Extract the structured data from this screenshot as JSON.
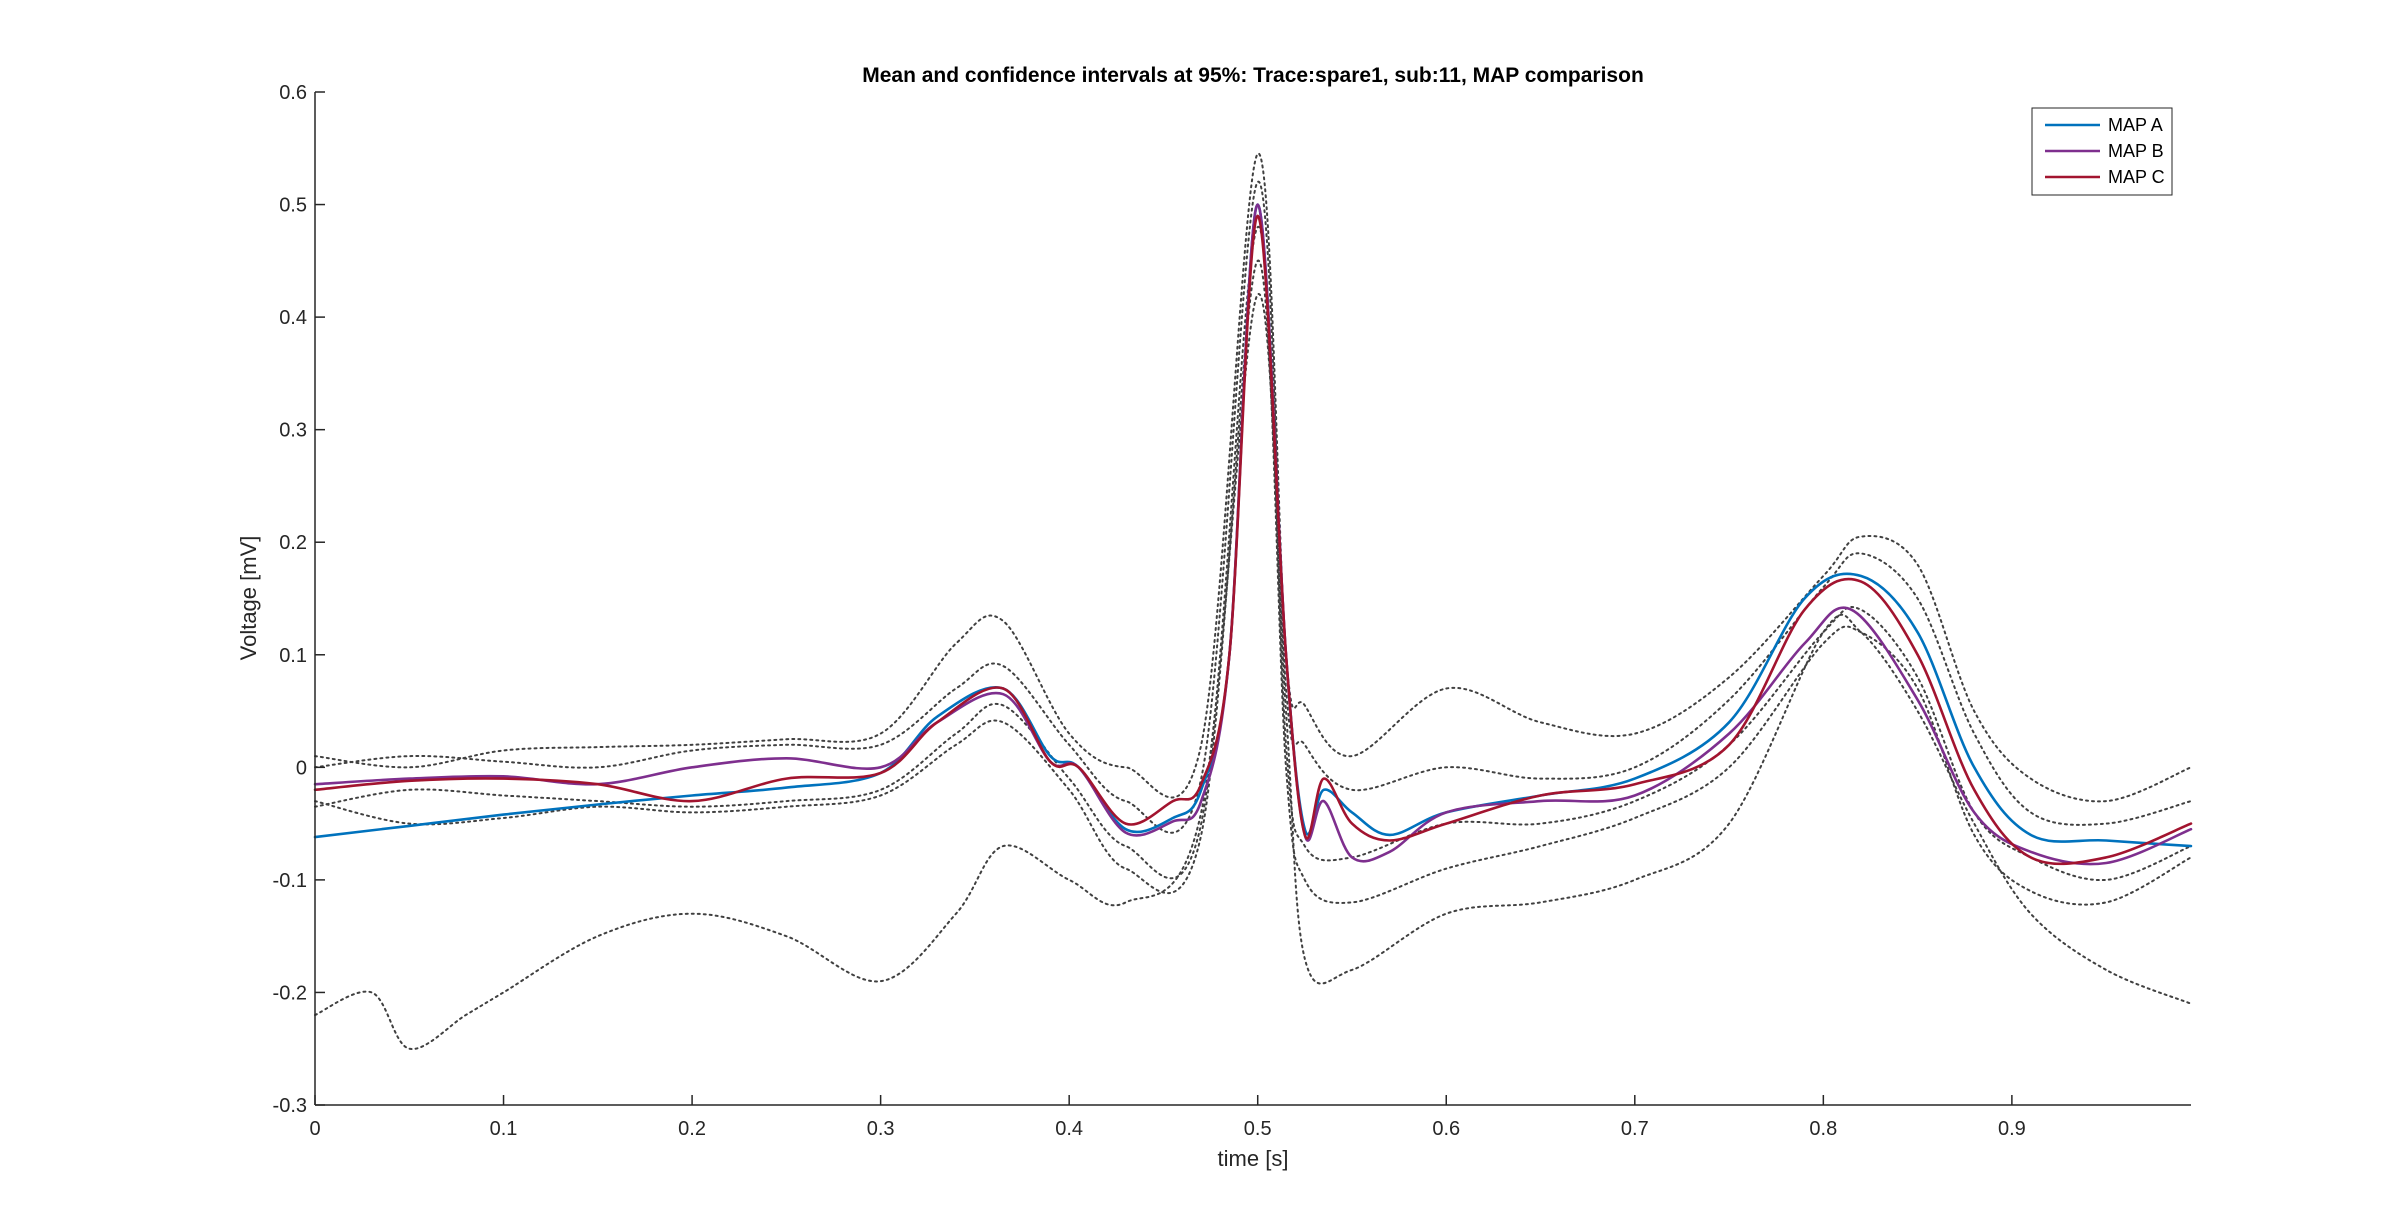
{
  "chart_data": {
    "type": "line",
    "title": "Mean and confidence intervals at 95%: Trace:spare1, sub:11, MAP comparison",
    "xlabel": "time [s]",
    "ylabel": "Voltage [mV]",
    "xlim": [
      0,
      0.995
    ],
    "ylim": [
      -0.3,
      0.6
    ],
    "xticks": [
      0,
      0.1,
      0.2,
      0.3,
      0.4,
      0.5,
      0.6,
      0.7,
      0.8,
      0.9
    ],
    "xtick_labels": [
      "0",
      "0.1",
      "0.2",
      "0.3",
      "0.4",
      "0.5",
      "0.6",
      "0.7",
      "0.8",
      "0.9"
    ],
    "yticks": [
      -0.3,
      -0.2,
      -0.1,
      0,
      0.1,
      0.2,
      0.3,
      0.4,
      0.5,
      0.6
    ],
    "ytick_labels": [
      "-0.3",
      "-0.2",
      "-0.1",
      "0",
      "0.1",
      "0.2",
      "0.3",
      "0.4",
      "0.5",
      "0.6"
    ],
    "grid": false,
    "legend_position": "top-right",
    "series": [
      {
        "name": "MAP A",
        "color": "#0072BD",
        "style": "solid",
        "x": [
          0,
          0.05,
          0.1,
          0.15,
          0.2,
          0.25,
          0.3,
          0.33,
          0.365,
          0.39,
          0.405,
          0.43,
          0.455,
          0.47,
          0.485,
          0.5,
          0.515,
          0.525,
          0.535,
          0.55,
          0.57,
          0.6,
          0.65,
          0.7,
          0.75,
          0.79,
          0.82,
          0.85,
          0.88,
          0.91,
          0.95,
          0.995
        ],
        "y": [
          -0.062,
          -0.052,
          -0.042,
          -0.033,
          -0.025,
          -0.018,
          -0.005,
          0.045,
          0.07,
          0.01,
          0.0,
          -0.055,
          -0.045,
          -0.02,
          0.1,
          0.5,
          0.1,
          -0.055,
          -0.02,
          -0.04,
          -0.06,
          -0.04,
          -0.025,
          -0.01,
          0.04,
          0.15,
          0.17,
          0.12,
          0.0,
          -0.06,
          -0.065,
          -0.07
        ]
      },
      {
        "name": "MAP B",
        "color": "#7E2F8E",
        "style": "solid",
        "x": [
          0,
          0.05,
          0.1,
          0.15,
          0.2,
          0.25,
          0.3,
          0.33,
          0.365,
          0.39,
          0.405,
          0.43,
          0.455,
          0.47,
          0.485,
          0.5,
          0.515,
          0.525,
          0.535,
          0.55,
          0.57,
          0.6,
          0.65,
          0.7,
          0.75,
          0.79,
          0.815,
          0.85,
          0.88,
          0.91,
          0.95,
          0.995
        ],
        "y": [
          -0.015,
          -0.01,
          -0.008,
          -0.015,
          0.0,
          0.008,
          0.0,
          0.04,
          0.065,
          0.005,
          0.0,
          -0.058,
          -0.048,
          -0.03,
          0.1,
          0.5,
          0.1,
          -0.06,
          -0.03,
          -0.08,
          -0.075,
          -0.04,
          -0.03,
          -0.025,
          0.03,
          0.11,
          0.14,
          0.06,
          -0.04,
          -0.075,
          -0.085,
          -0.055
        ]
      },
      {
        "name": "MAP C",
        "color": "#A2142F",
        "style": "solid",
        "x": [
          0,
          0.05,
          0.1,
          0.15,
          0.2,
          0.25,
          0.3,
          0.33,
          0.365,
          0.39,
          0.405,
          0.43,
          0.455,
          0.47,
          0.485,
          0.5,
          0.515,
          0.525,
          0.535,
          0.55,
          0.57,
          0.6,
          0.65,
          0.7,
          0.75,
          0.79,
          0.82,
          0.85,
          0.88,
          0.91,
          0.95,
          0.995
        ],
        "y": [
          -0.02,
          -0.012,
          -0.01,
          -0.015,
          -0.03,
          -0.01,
          -0.005,
          0.04,
          0.07,
          0.005,
          0.0,
          -0.05,
          -0.03,
          -0.015,
          0.1,
          0.49,
          0.1,
          -0.06,
          -0.01,
          -0.05,
          -0.065,
          -0.05,
          -0.025,
          -0.015,
          0.02,
          0.14,
          0.165,
          0.1,
          -0.02,
          -0.08,
          -0.08,
          -0.05
        ]
      },
      {
        "name": "",
        "color": "#404040",
        "style": "dotted",
        "x": [
          0,
          0.03,
          0.05,
          0.08,
          0.1,
          0.15,
          0.2,
          0.25,
          0.3,
          0.34,
          0.365,
          0.4,
          0.43,
          0.47,
          0.5,
          0.515,
          0.525,
          0.55,
          0.6,
          0.65,
          0.7,
          0.75,
          0.8,
          0.82,
          0.85,
          0.88,
          0.91,
          0.95,
          0.995
        ],
        "y": [
          -0.22,
          -0.2,
          -0.25,
          -0.22,
          -0.2,
          -0.15,
          -0.13,
          -0.15,
          -0.19,
          -0.13,
          -0.07,
          -0.1,
          -0.12,
          -0.04,
          0.42,
          0.05,
          -0.17,
          -0.18,
          -0.13,
          -0.12,
          -0.1,
          -0.05,
          0.12,
          0.12,
          0.05,
          -0.05,
          -0.13,
          -0.18,
          -0.21
        ]
      },
      {
        "name": "",
        "color": "#404040",
        "style": "dotted",
        "x": [
          0,
          0.05,
          0.1,
          0.15,
          0.2,
          0.25,
          0.3,
          0.34,
          0.365,
          0.4,
          0.43,
          0.47,
          0.5,
          0.515,
          0.525,
          0.55,
          0.6,
          0.65,
          0.7,
          0.75,
          0.8,
          0.82,
          0.85,
          0.88,
          0.91,
          0.95,
          0.995
        ],
        "y": [
          0.01,
          0.0,
          0.015,
          0.018,
          0.02,
          0.025,
          0.03,
          0.11,
          0.13,
          0.03,
          0.0,
          0.02,
          0.545,
          0.1,
          0.055,
          0.01,
          0.07,
          0.04,
          0.03,
          0.08,
          0.17,
          0.205,
          0.18,
          0.05,
          -0.01,
          -0.03,
          0.0
        ]
      },
      {
        "name": "",
        "color": "#404040",
        "style": "dotted",
        "x": [
          0,
          0.05,
          0.1,
          0.15,
          0.2,
          0.25,
          0.3,
          0.34,
          0.365,
          0.4,
          0.43,
          0.47,
          0.5,
          0.515,
          0.525,
          0.55,
          0.6,
          0.65,
          0.7,
          0.75,
          0.8,
          0.82,
          0.85,
          0.88,
          0.91,
          0.95,
          0.995
        ],
        "y": [
          -0.03,
          -0.05,
          -0.045,
          -0.035,
          -0.04,
          -0.035,
          -0.025,
          0.02,
          0.04,
          -0.02,
          -0.09,
          -0.06,
          0.45,
          0.0,
          -0.1,
          -0.12,
          -0.09,
          -0.07,
          -0.045,
          0.0,
          0.11,
          0.12,
          0.07,
          -0.06,
          -0.11,
          -0.12,
          -0.08
        ]
      },
      {
        "name": "",
        "color": "#404040",
        "style": "dotted",
        "x": [
          0,
          0.05,
          0.1,
          0.15,
          0.2,
          0.25,
          0.3,
          0.34,
          0.365,
          0.4,
          0.43,
          0.47,
          0.5,
          0.515,
          0.525,
          0.55,
          0.6,
          0.65,
          0.7,
          0.75,
          0.8,
          0.82,
          0.85,
          0.88,
          0.91,
          0.95,
          0.995
        ],
        "y": [
          0.0,
          0.01,
          0.005,
          0.0,
          0.015,
          0.02,
          0.02,
          0.07,
          0.09,
          0.02,
          -0.03,
          -0.01,
          0.52,
          0.07,
          0.02,
          -0.02,
          0.0,
          -0.01,
          0.0,
          0.06,
          0.16,
          0.19,
          0.15,
          0.03,
          -0.04,
          -0.05,
          -0.03
        ]
      },
      {
        "name": "",
        "color": "#404040",
        "style": "dotted",
        "x": [
          0,
          0.05,
          0.1,
          0.15,
          0.2,
          0.25,
          0.3,
          0.34,
          0.365,
          0.4,
          0.43,
          0.47,
          0.5,
          0.515,
          0.525,
          0.55,
          0.6,
          0.65,
          0.7,
          0.75,
          0.8,
          0.82,
          0.85,
          0.88,
          0.91,
          0.95,
          0.995
        ],
        "y": [
          -0.035,
          -0.02,
          -0.025,
          -0.03,
          -0.035,
          -0.03,
          -0.02,
          0.03,
          0.055,
          -0.01,
          -0.07,
          -0.05,
          0.48,
          0.02,
          -0.07,
          -0.08,
          -0.05,
          -0.05,
          -0.03,
          0.02,
          0.12,
          0.14,
          0.08,
          -0.04,
          -0.08,
          -0.1,
          -0.07
        ]
      }
    ]
  }
}
